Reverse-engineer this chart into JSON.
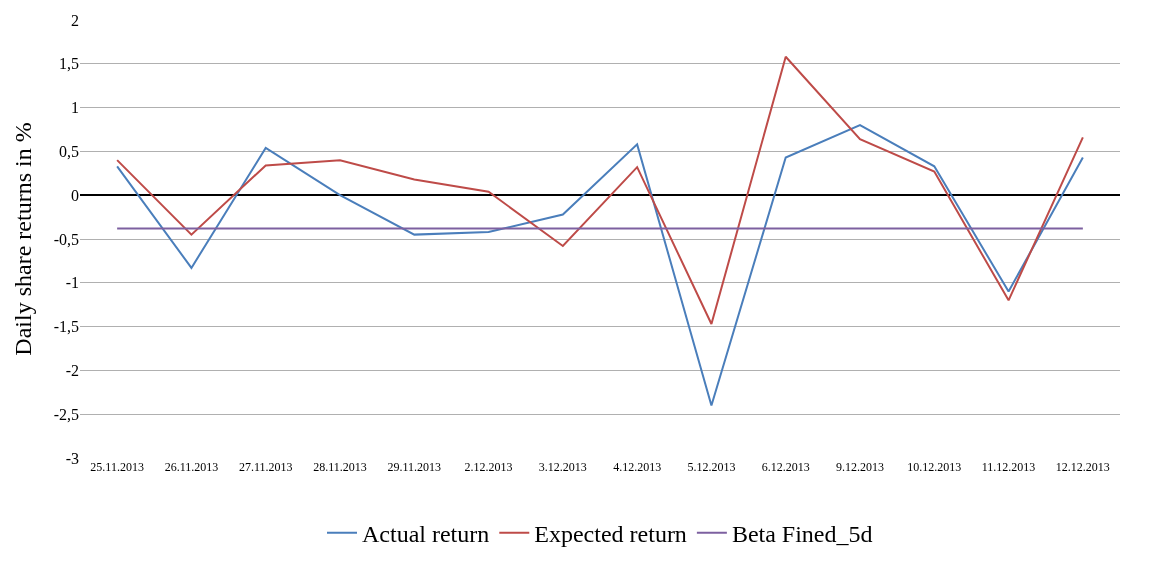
{
  "chart_data": {
    "type": "line",
    "ylabel": "Daily share returns in %",
    "categories": [
      "25.11.2013",
      "26.11.2013",
      "27.11.2013",
      "28.11.2013",
      "29.11.2013",
      "2.12.2013",
      "3.12.2013",
      "4.12.2013",
      "5.12.2013",
      "6.12.2013",
      "9.12.2013",
      "10.12.2013",
      "11.12.2013",
      "12.12.2013"
    ],
    "series": [
      {
        "name": "Actual return",
        "color": "#4a7ebb",
        "values": [
          0.33,
          -0.83,
          0.54,
          0.0,
          -0.45,
          -0.42,
          -0.22,
          0.58,
          -2.4,
          0.43,
          0.8,
          0.33,
          -1.1,
          0.43
        ]
      },
      {
        "name": "Expected return",
        "color": "#be4b48",
        "values": [
          0.4,
          -0.45,
          0.34,
          0.4,
          0.18,
          0.04,
          -0.58,
          0.32,
          -1.47,
          1.58,
          0.64,
          0.27,
          -1.2,
          0.66
        ]
      },
      {
        "name": "Beta Fined_5d",
        "color": "#7d60a0",
        "values": [
          -0.38,
          -0.38,
          -0.38,
          -0.38,
          -0.38,
          -0.38,
          -0.38,
          -0.38,
          -0.38,
          -0.38,
          -0.38,
          -0.38,
          -0.38,
          -0.38
        ]
      }
    ],
    "ylim": [
      -3,
      2
    ],
    "yticks": [
      -3,
      {
        "value": -2.5,
        "label": "-2,5"
      },
      -2,
      {
        "value": -1.5,
        "label": "-1,5"
      },
      -1,
      {
        "value": -0.5,
        "label": "-0,5"
      },
      0,
      {
        "value": 0.5,
        "label": "0,5"
      },
      1,
      {
        "value": 1.5,
        "label": "1,5"
      },
      2
    ],
    "grid": "y",
    "legend": "bottom",
    "marker": "none",
    "line_style": "solid"
  }
}
